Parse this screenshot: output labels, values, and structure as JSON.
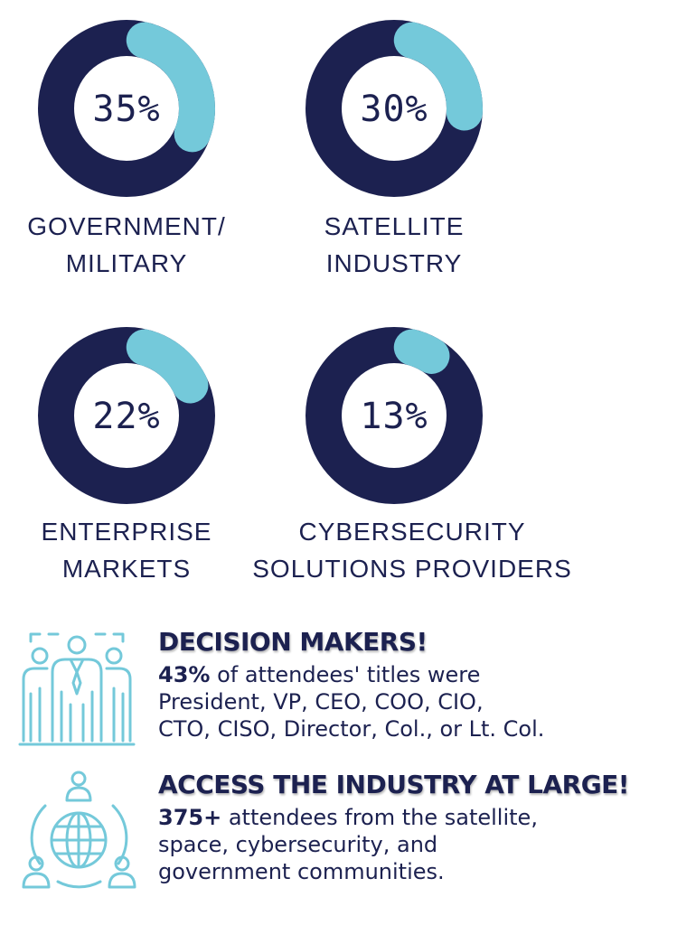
{
  "colors": {
    "ring_dark": "#1c2150",
    "ring_accent": "#74c9da",
    "text": "#1c2150",
    "icon": "#74c9da"
  },
  "chart_data": [
    {
      "type": "pie",
      "variant": "donut",
      "value": 35,
      "percent_label": "35%",
      "label_lines": [
        "GOVERNMENT/",
        "MILITARY"
      ]
    },
    {
      "type": "pie",
      "variant": "donut",
      "value": 30,
      "percent_label": "30%",
      "label_lines": [
        "SATELLITE",
        "INDUSTRY"
      ]
    },
    {
      "type": "pie",
      "variant": "donut",
      "value": 22,
      "percent_label": "22%",
      "label_lines": [
        "ENTERPRISE",
        "MARKETS"
      ]
    },
    {
      "type": "pie",
      "variant": "donut",
      "value": 13,
      "percent_label": "13%",
      "label_lines": [
        "CYBERSECURITY",
        "SOLUTIONS PROVIDERS"
      ]
    }
  ],
  "stats": [
    {
      "icon": "business-team-icon",
      "title": "DECISION MAKERS!",
      "highlight": "43%",
      "lines": [
        " of attendees' titles were",
        "President, VP, CEO, COO, CIO,",
        "CTO, CISO, Director, Col., or Lt. Col."
      ]
    },
    {
      "icon": "global-network-icon",
      "title": "ACCESS THE INDUSTRY AT LARGE!",
      "highlight": "375+",
      "lines": [
        " attendees from the satellite,",
        "space, cybersecurity, and",
        "government communities."
      ]
    }
  ]
}
